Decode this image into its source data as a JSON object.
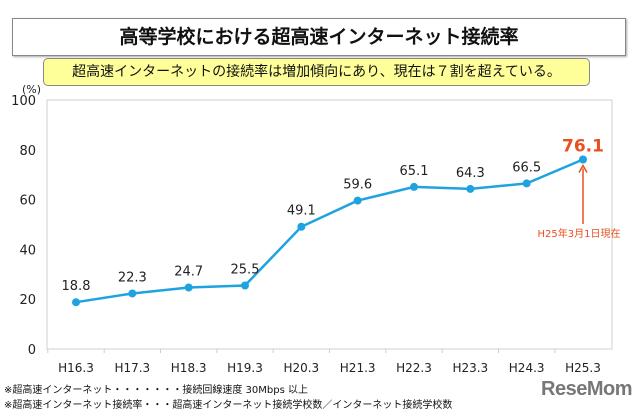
{
  "title": "高等学校における超高速インターネット接続率",
  "subtitle": "超高速インターネットの接続率は増加傾向にあり、現在は７割を超えている。",
  "notes": [
    "※超高速インターネット・・・・・・・接続回線速度 30Mbps 以上",
    "※超高速インターネット接続率・・・超高速インターネット接続学校数／インターネット接続学校数"
  ],
  "logo": "ReseMom",
  "chart_data": {
    "type": "line",
    "ylabel": "(%)",
    "ylim": [
      0,
      100
    ],
    "yticks": [
      0,
      20,
      40,
      60,
      80,
      100
    ],
    "categories": [
      "H16.3",
      "H17.3",
      "H18.3",
      "H19.3",
      "H20.3",
      "H21.3",
      "H22.3",
      "H23.3",
      "H24.3",
      "H25.3"
    ],
    "values": [
      18.8,
      22.3,
      24.7,
      25.5,
      49.1,
      59.6,
      65.1,
      64.3,
      66.5,
      76.1
    ],
    "labels": [
      "18.8",
      "22.3",
      "24.7",
      "25.5",
      "49.1",
      "59.6",
      "65.1",
      "64.3",
      "66.5",
      "76.1"
    ],
    "annotation": "H25年3月1日現在",
    "line_color": "#1fa3e0",
    "highlight_color": "#e8501e",
    "grid": false
  }
}
